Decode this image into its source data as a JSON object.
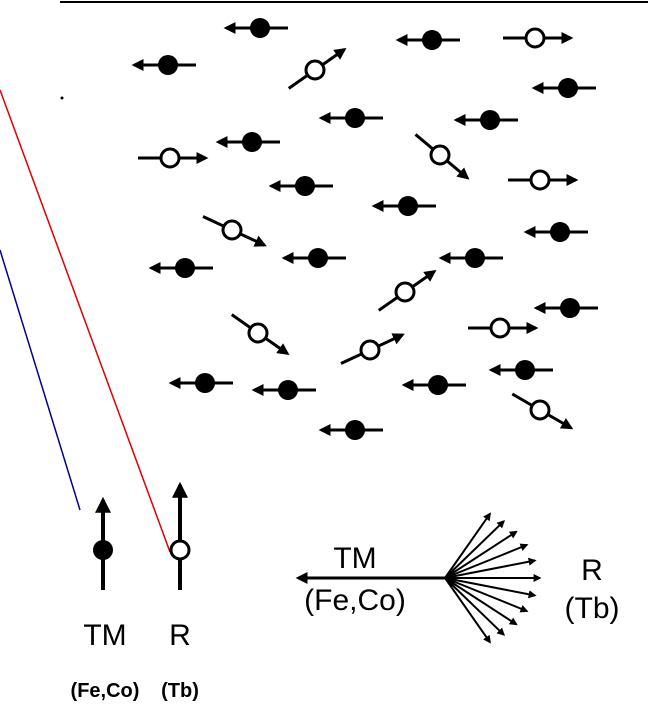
{
  "legend": {
    "tm": {
      "symbol": "TM",
      "elements": "(Fe,Co)"
    },
    "r": {
      "symbol": "R",
      "elements": "(Tb)"
    }
  },
  "fan": {
    "tm": {
      "symbol": "TM",
      "elements": "(Fe,Co)"
    },
    "r": {
      "symbol": "R",
      "elements": "(Tb)"
    }
  }
}
